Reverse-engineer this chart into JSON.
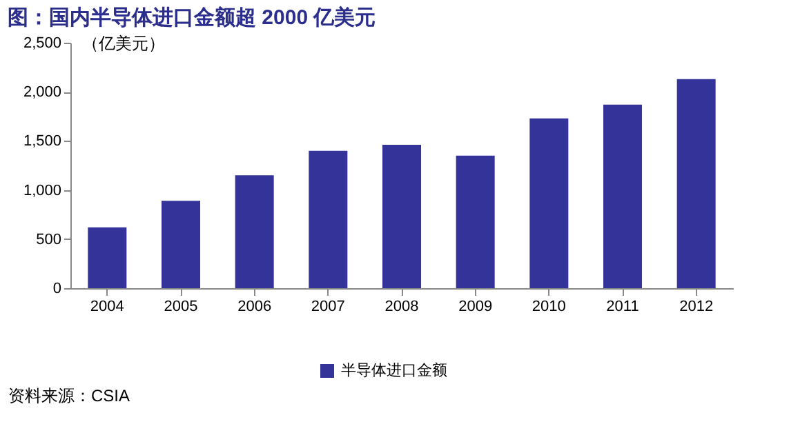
{
  "chart_data": {
    "type": "bar",
    "title": "图：国内半导体进口金额超 2000 亿美元",
    "ylabel": "（亿美元）",
    "categories": [
      "2004",
      "2005",
      "2006",
      "2007",
      "2008",
      "2009",
      "2010",
      "2011",
      "2012"
    ],
    "series": [
      {
        "name": "半导体进口金额",
        "color": "#333399",
        "values": [
          620,
          890,
          1150,
          1400,
          1460,
          1350,
          1730,
          1870,
          2130
        ]
      }
    ],
    "ylim": [
      0,
      2500
    ],
    "yticks": [
      0,
      500,
      {
        "value": 1000,
        "label": "1,000"
      },
      {
        "value": 1500,
        "label": "1,500"
      },
      {
        "value": 2000,
        "label": "2,000"
      },
      {
        "value": 2500,
        "label": "2,500"
      }
    ],
    "grid": false,
    "legend": "bottom",
    "annotations": [
      "资料来源：CSIA"
    ]
  }
}
